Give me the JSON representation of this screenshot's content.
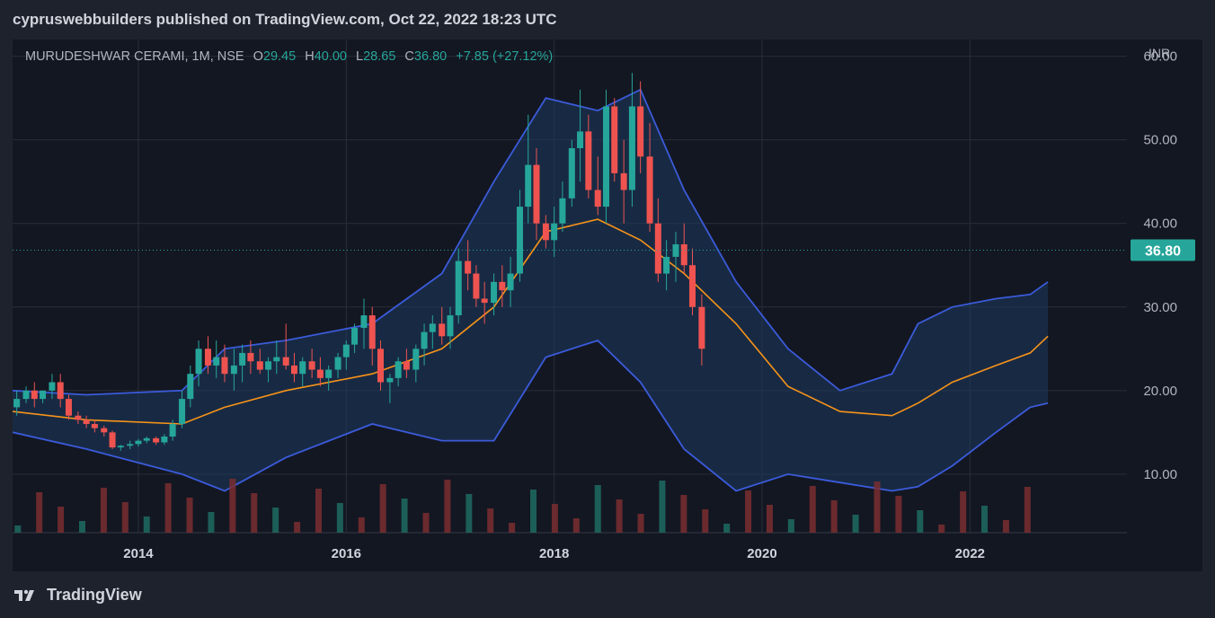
{
  "header": {
    "title": "cypruswebbuilders published on TradingView.com, Oct 22, 2022 18:23 UTC"
  },
  "legend": {
    "symbol": "MURUDESHWAR CERAMI, 1M, NSE",
    "open_label": "O",
    "open": "29.45",
    "high_label": "H",
    "high": "40.00",
    "low_label": "L",
    "low": "28.65",
    "close_label": "C",
    "close": "36.80",
    "change": "+7.85 (+27.12%)"
  },
  "axis": {
    "currency": "INR"
  },
  "footer": {
    "brand": "TradingView"
  },
  "colors": {
    "up": "#26a69a",
    "down": "#ef5350",
    "band": "#3b5bdb",
    "basis": "#f7931a",
    "band_fill": "#1e3a5f",
    "background": "#131722",
    "price_tag": "#26a69a"
  },
  "chart_data": {
    "type": "candlestick",
    "interval": "1M",
    "y_ticks": [
      "60.00",
      "50.00",
      "40.00",
      "30.00",
      "20.00",
      "10.00"
    ],
    "y_tick_values": [
      60,
      50,
      40,
      30,
      20,
      10
    ],
    "ylim": [
      3,
      62
    ],
    "x_ticks": [
      "2014",
      "2016",
      "2018",
      "2020",
      "2022"
    ],
    "x_tick_values": [
      2014,
      2016,
      2018,
      2020,
      2022
    ],
    "xlim": [
      2012.79,
      2023.51
    ],
    "last_price_label": "36.80",
    "last_price": 36.8,
    "candles": [
      [
        2012.83,
        18,
        20,
        17,
        19
      ],
      [
        2012.92,
        19,
        20.5,
        18.5,
        20
      ],
      [
        2013.0,
        20,
        21,
        18,
        19
      ],
      [
        2013.08,
        19,
        20,
        18.5,
        20
      ],
      [
        2013.17,
        20,
        22,
        19,
        21
      ],
      [
        2013.25,
        21,
        22,
        18,
        19
      ],
      [
        2013.33,
        19,
        19.5,
        16.5,
        17
      ],
      [
        2013.42,
        17,
        17.5,
        16,
        16.5
      ],
      [
        2013.5,
        16.5,
        17,
        15.5,
        16
      ],
      [
        2013.58,
        16,
        16.5,
        15,
        15.5
      ],
      [
        2013.67,
        15.5,
        15.8,
        14.5,
        15
      ],
      [
        2013.75,
        15,
        15.2,
        13,
        13.2
      ],
      [
        2013.83,
        13.2,
        13.5,
        12.8,
        13.4
      ],
      [
        2013.92,
        13.4,
        14,
        13,
        13.6
      ],
      [
        2014.0,
        13.6,
        14.2,
        13.3,
        14
      ],
      [
        2014.08,
        14,
        14.5,
        13.7,
        14.3
      ],
      [
        2014.17,
        14.3,
        14.5,
        13.5,
        13.8
      ],
      [
        2014.25,
        13.8,
        14.8,
        13.5,
        14.5
      ],
      [
        2014.33,
        14.5,
        16.5,
        14,
        16
      ],
      [
        2014.42,
        16,
        20,
        15.5,
        19
      ],
      [
        2014.5,
        19,
        23,
        18,
        22
      ],
      [
        2014.58,
        22,
        26,
        20.5,
        25
      ],
      [
        2014.67,
        25,
        26.5,
        22,
        23
      ],
      [
        2014.75,
        23,
        26,
        21.5,
        24
      ],
      [
        2014.83,
        24,
        25.5,
        21,
        22
      ],
      [
        2014.92,
        22,
        25,
        20,
        23
      ],
      [
        2015.0,
        23,
        25.5,
        21,
        24.5
      ],
      [
        2015.08,
        24.5,
        26,
        22,
        23.5
      ],
      [
        2015.17,
        23.5,
        25,
        22,
        22.5
      ],
      [
        2015.25,
        22.5,
        24,
        21,
        23.5
      ],
      [
        2015.33,
        23.5,
        26,
        22,
        24
      ],
      [
        2015.42,
        24,
        28,
        22.5,
        23
      ],
      [
        2015.5,
        23,
        24.5,
        21,
        22
      ],
      [
        2015.58,
        22,
        24,
        20.5,
        23.5
      ],
      [
        2015.67,
        23.5,
        25,
        21.5,
        22.5
      ],
      [
        2015.75,
        22.5,
        24,
        20.5,
        21.5
      ],
      [
        2015.83,
        21.5,
        23,
        20,
        22.5
      ],
      [
        2015.92,
        22.5,
        24.5,
        21.5,
        24
      ],
      [
        2016.0,
        24,
        26,
        22.5,
        25.5
      ],
      [
        2016.08,
        25.5,
        28,
        24.5,
        27.5
      ],
      [
        2016.17,
        27.5,
        31,
        25,
        29
      ],
      [
        2016.25,
        29,
        30,
        23,
        25
      ],
      [
        2016.33,
        25,
        26,
        20,
        21
      ],
      [
        2016.42,
        21,
        22,
        18.5,
        21.5
      ],
      [
        2016.5,
        21.5,
        24,
        20.5,
        23.5
      ],
      [
        2016.58,
        23.5,
        25,
        21.5,
        22.5
      ],
      [
        2016.67,
        22.5,
        25.5,
        21,
        25
      ],
      [
        2016.75,
        25,
        28,
        23,
        27
      ],
      [
        2016.83,
        27,
        29,
        25,
        28
      ],
      [
        2016.92,
        28,
        30,
        25.5,
        26.5
      ],
      [
        2017.0,
        26.5,
        30,
        25,
        29
      ],
      [
        2017.08,
        29,
        37,
        28,
        35.5
      ],
      [
        2017.17,
        35.5,
        38,
        32,
        34
      ],
      [
        2017.25,
        34,
        35,
        30,
        31
      ],
      [
        2017.33,
        31,
        33,
        28,
        30.5
      ],
      [
        2017.42,
        30.5,
        34,
        29,
        33
      ],
      [
        2017.5,
        33,
        35,
        30,
        32
      ],
      [
        2017.58,
        32,
        36,
        30,
        34
      ],
      [
        2017.67,
        34,
        44,
        33,
        42
      ],
      [
        2017.75,
        42,
        53,
        40,
        47
      ],
      [
        2017.83,
        47,
        49,
        38,
        40
      ],
      [
        2017.92,
        40,
        41,
        37,
        38
      ],
      [
        2018.0,
        38,
        42,
        36,
        40
      ],
      [
        2018.08,
        40,
        45,
        39,
        43
      ],
      [
        2018.17,
        43,
        50,
        42,
        49
      ],
      [
        2018.25,
        49,
        56,
        45,
        51
      ],
      [
        2018.33,
        51,
        53,
        43,
        44
      ],
      [
        2018.42,
        44,
        48,
        41,
        42
      ],
      [
        2018.5,
        42,
        56,
        40,
        54
      ],
      [
        2018.58,
        54,
        55,
        45,
        46
      ],
      [
        2018.67,
        46,
        50,
        40,
        44
      ],
      [
        2018.75,
        44,
        58,
        42,
        54
      ],
      [
        2018.83,
        54,
        57,
        46,
        48
      ],
      [
        2018.92,
        48,
        52,
        39,
        40
      ],
      [
        2019.0,
        40,
        43,
        33,
        34
      ],
      [
        2019.08,
        34,
        38,
        32,
        36
      ],
      [
        2019.17,
        36,
        39,
        33,
        37.5
      ],
      [
        2019.25,
        37.5,
        40,
        34,
        35
      ],
      [
        2019.33,
        35,
        37,
        29,
        30
      ],
      [
        2019.42,
        30,
        31.5,
        23,
        25
      ]
    ],
    "volume_count": 48,
    "bollinger": {
      "upper": [
        [
          2012.79,
          20
        ],
        [
          2013.5,
          19.5
        ],
        [
          2014.42,
          20
        ],
        [
          2014.83,
          25
        ],
        [
          2015.42,
          26
        ],
        [
          2016.25,
          28
        ],
        [
          2016.92,
          34
        ],
        [
          2017.42,
          45
        ],
        [
          2017.92,
          55
        ],
        [
          2018.42,
          53.5
        ],
        [
          2018.83,
          56
        ],
        [
          2019.25,
          44
        ],
        [
          2019.75,
          33
        ],
        [
          2020.25,
          25
        ],
        [
          2020.75,
          20
        ],
        [
          2021.25,
          22
        ],
        [
          2021.5,
          28
        ],
        [
          2021.83,
          30
        ],
        [
          2022.25,
          31
        ],
        [
          2022.58,
          31.5
        ],
        [
          2022.75,
          33
        ]
      ],
      "basis": [
        [
          2012.79,
          17.5
        ],
        [
          2013.5,
          16.5
        ],
        [
          2014.42,
          16
        ],
        [
          2014.83,
          18
        ],
        [
          2015.42,
          20
        ],
        [
          2016.25,
          22
        ],
        [
          2016.92,
          25
        ],
        [
          2017.42,
          30
        ],
        [
          2017.92,
          39
        ],
        [
          2018.42,
          40.5
        ],
        [
          2018.83,
          38
        ],
        [
          2019.25,
          34
        ],
        [
          2019.75,
          28
        ],
        [
          2020.25,
          20.5
        ],
        [
          2020.75,
          17.5
        ],
        [
          2021.25,
          17
        ],
        [
          2021.5,
          18.5
        ],
        [
          2021.83,
          21
        ],
        [
          2022.25,
          23
        ],
        [
          2022.58,
          24.5
        ],
        [
          2022.75,
          26.5
        ]
      ],
      "lower": [
        [
          2012.79,
          15
        ],
        [
          2013.5,
          13
        ],
        [
          2014.42,
          10
        ],
        [
          2014.83,
          8
        ],
        [
          2015.42,
          12
        ],
        [
          2016.25,
          16
        ],
        [
          2016.92,
          14
        ],
        [
          2017.42,
          14
        ],
        [
          2017.92,
          24
        ],
        [
          2018.42,
          26
        ],
        [
          2018.83,
          21
        ],
        [
          2019.25,
          13
        ],
        [
          2019.75,
          8
        ],
        [
          2020.25,
          10
        ],
        [
          2020.75,
          9
        ],
        [
          2021.25,
          8
        ],
        [
          2021.5,
          8.5
        ],
        [
          2021.83,
          11
        ],
        [
          2022.25,
          15
        ],
        [
          2022.58,
          18
        ],
        [
          2022.75,
          18.5
        ]
      ]
    }
  }
}
